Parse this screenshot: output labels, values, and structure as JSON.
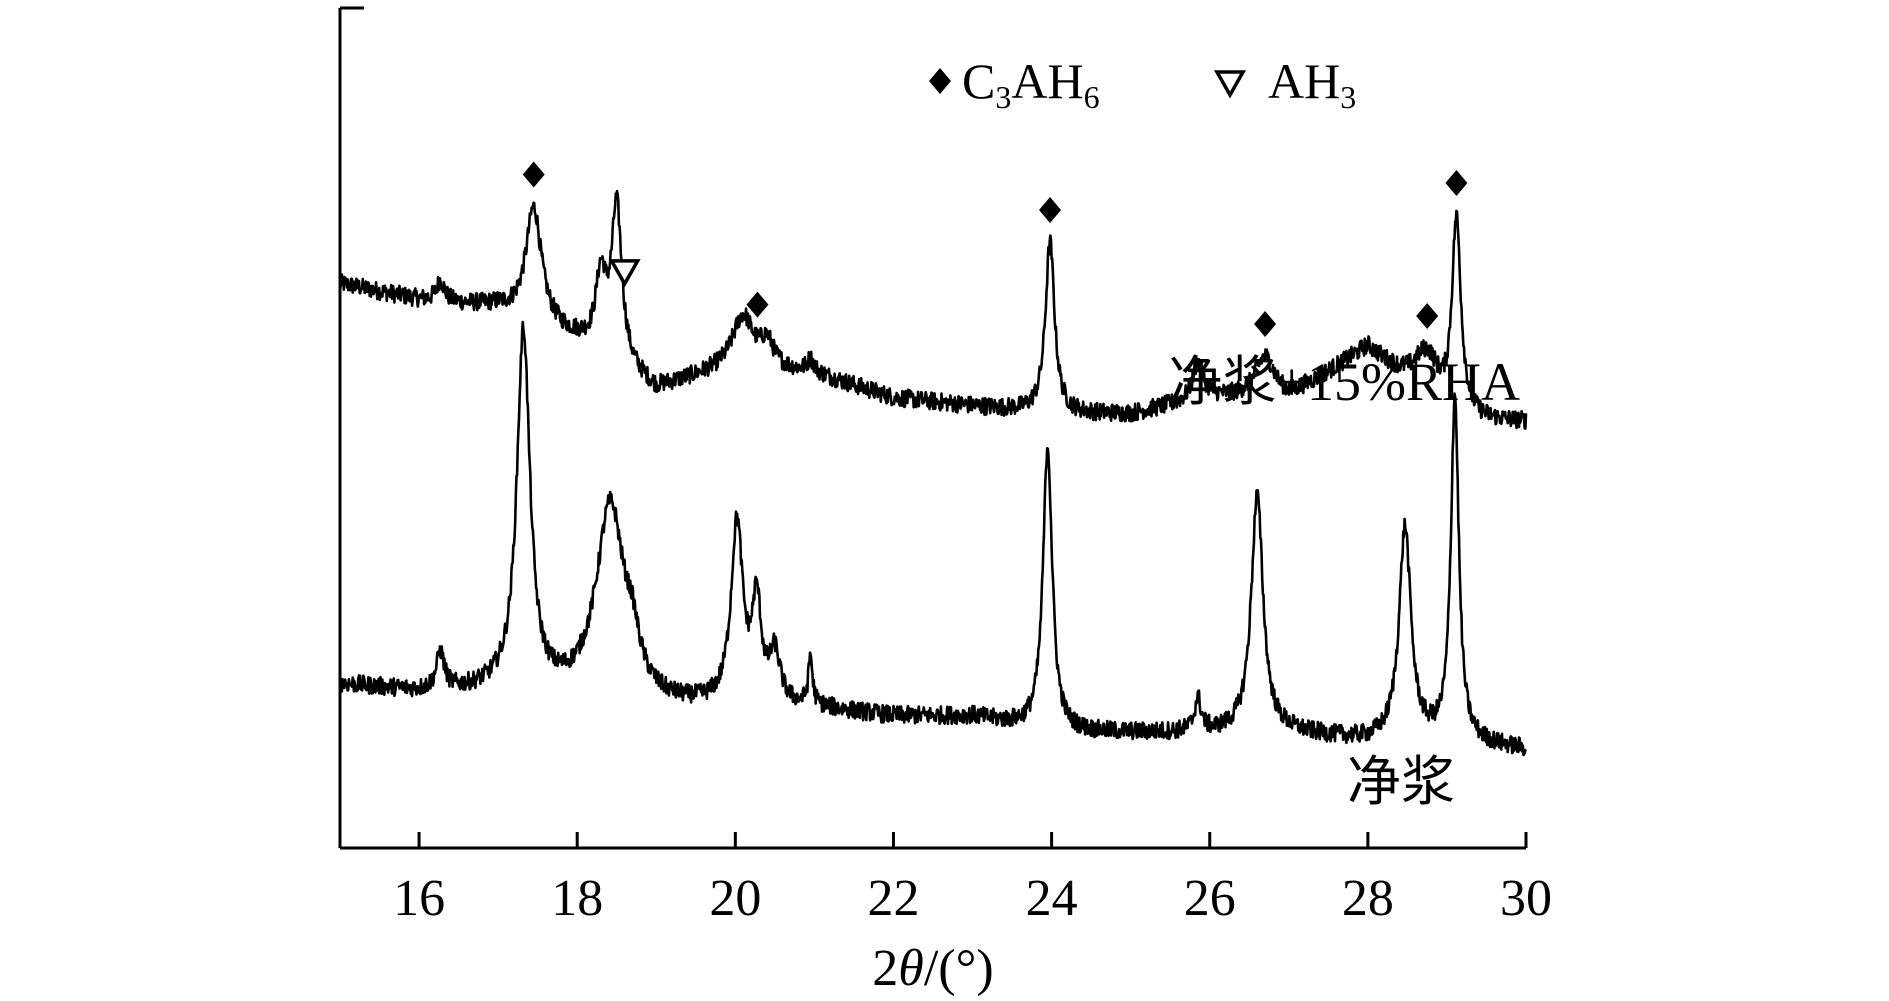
{
  "chart_data": {
    "type": "line",
    "title": "",
    "xlabel_parts": [
      "2",
      "θ",
      "/(°)"
    ],
    "ylabel": "",
    "xlim": [
      15,
      30
    ],
    "xticks": [
      16,
      18,
      20,
      22,
      24,
      26,
      28,
      30
    ],
    "ylim": [
      0,
      100
    ],
    "y_ticks_shown": false,
    "grid": false,
    "legend": {
      "position": "top-right",
      "entries": [
        {
          "marker": "diamond",
          "main": "C",
          "sub1": "3",
          "mid": "AH",
          "sub2": "6"
        },
        {
          "marker": "open-triangle-down",
          "main": "AH",
          "sub1": "3"
        }
      ]
    },
    "series": [
      {
        "name": "净浆+15%RHA",
        "color": "#000000",
        "baseline": [
          [
            15,
            69
          ],
          [
            16,
            67
          ],
          [
            17,
            66
          ],
          [
            18,
            62
          ],
          [
            19,
            56
          ],
          [
            20,
            59
          ],
          [
            21,
            58
          ],
          [
            22,
            55
          ],
          [
            23,
            54
          ],
          [
            24,
            53
          ],
          [
            25,
            53
          ],
          [
            26,
            55
          ],
          [
            27,
            55
          ],
          [
            28,
            61
          ],
          [
            29,
            52
          ],
          [
            30,
            52
          ]
        ],
        "peaks": [
          {
            "x": 16.27,
            "h": 2.5,
            "w": 0.06
          },
          {
            "x": 17.45,
            "h": 14,
            "w": 0.12
          },
          {
            "x": 18.3,
            "h": 9,
            "w": 0.08
          },
          {
            "x": 18.5,
            "h": 19,
            "w": 0.08
          },
          {
            "x": 20.1,
            "h": 6,
            "w": 0.15
          },
          {
            "x": 20.4,
            "h": 3,
            "w": 0.1
          },
          {
            "x": 20.95,
            "h": 1.5,
            "w": 0.05
          },
          {
            "x": 23.98,
            "h": 21,
            "w": 0.07
          },
          {
            "x": 25.85,
            "h": 4.5,
            "w": 0.08
          },
          {
            "x": 26.7,
            "h": 5,
            "w": 0.15
          },
          {
            "x": 28.75,
            "h": 6,
            "w": 0.2
          },
          {
            "x": 29.12,
            "h": 24,
            "w": 0.07
          }
        ],
        "markers": [
          {
            "x": 17.45,
            "type": "diamond"
          },
          {
            "x": 18.6,
            "type": "open-triangle-down"
          },
          {
            "x": 20.28,
            "type": "diamond"
          },
          {
            "x": 23.98,
            "type": "diamond"
          },
          {
            "x": 26.7,
            "type": "diamond"
          },
          {
            "x": 28.75,
            "type": "diamond"
          },
          {
            "x": 29.12,
            "type": "diamond"
          }
        ]
      },
      {
        "name": "净浆",
        "color": "#000000",
        "baseline": [
          [
            15,
            20
          ],
          [
            16,
            19
          ],
          [
            17,
            19
          ],
          [
            18,
            18
          ],
          [
            19,
            17
          ],
          [
            20,
            17
          ],
          [
            21,
            17
          ],
          [
            22,
            16
          ],
          [
            23,
            16
          ],
          [
            24,
            14
          ],
          [
            25,
            14
          ],
          [
            26,
            14
          ],
          [
            27,
            14
          ],
          [
            28,
            13
          ],
          [
            29,
            13
          ],
          [
            30,
            12
          ]
        ],
        "peaks": [
          {
            "x": 16.27,
            "h": 4.5,
            "w": 0.06
          },
          {
            "x": 17.32,
            "h": 44,
            "w": 0.1
          },
          {
            "x": 18.42,
            "h": 24,
            "w": 0.22
          },
          {
            "x": 18.7,
            "h": 4,
            "w": 0.1
          },
          {
            "x": 20.02,
            "h": 22,
            "w": 0.09
          },
          {
            "x": 20.27,
            "h": 12,
            "w": 0.07
          },
          {
            "x": 20.5,
            "h": 6,
            "w": 0.08
          },
          {
            "x": 20.95,
            "h": 6,
            "w": 0.03
          },
          {
            "x": 23.95,
            "h": 35,
            "w": 0.07
          },
          {
            "x": 25.85,
            "h": 4,
            "w": 0.05
          },
          {
            "x": 26.6,
            "h": 29,
            "w": 0.09
          },
          {
            "x": 28.47,
            "h": 26,
            "w": 0.09
          },
          {
            "x": 29.1,
            "h": 42,
            "w": 0.06
          }
        ],
        "markers": []
      }
    ]
  }
}
